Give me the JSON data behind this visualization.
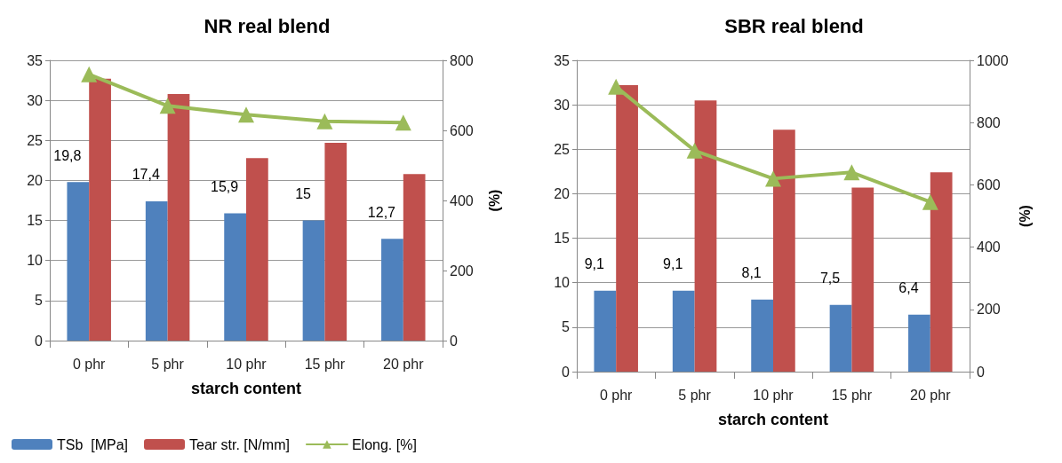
{
  "chart_data": [
    {
      "type": "bar",
      "title": "NR real blend",
      "xlabel": "starch content",
      "y2label": "(%)",
      "categories": [
        "0 phr",
        "5 phr",
        "10 phr",
        "15 phr",
        "20 phr"
      ],
      "series": [
        {
          "name": "TSb  [MPa]",
          "color": "#4f81bd",
          "values": [
            19.8,
            17.4,
            15.9,
            15,
            12.7
          ],
          "value_labels": [
            "19,8",
            "17,4",
            "15,9",
            "15",
            "12,7"
          ]
        },
        {
          "name": "Tear str. [N/mm]",
          "color": "#c0504d",
          "values": [
            32.7,
            30.8,
            22.8,
            24.7,
            20.8
          ]
        },
        {
          "name": "Elong. [%]",
          "type": "line",
          "axis": "y2",
          "color": "#9bbb59",
          "values": [
            760,
            670,
            645,
            626,
            622
          ]
        }
      ],
      "ylim": [
        0,
        35
      ],
      "yticks": [
        0,
        5,
        10,
        15,
        20,
        25,
        30,
        35
      ],
      "y2lim": [
        0,
        800
      ],
      "y2ticks": [
        0,
        200,
        400,
        600,
        800
      ],
      "grid": "y",
      "legend": "bottom",
      "marker": "triangle"
    },
    {
      "type": "bar",
      "title": "SBR real blend",
      "xlabel": "starch content",
      "y2label": "(%)",
      "categories": [
        "0 phr",
        "5 phr",
        "10 phr",
        "15 phr",
        "20 phr"
      ],
      "series": [
        {
          "color": "#4f81bd",
          "values": [
            9.1,
            9.1,
            8.1,
            7.5,
            6.4
          ],
          "value_labels": [
            "9,1",
            "9,1",
            "8,1",
            "7,5",
            "6,4"
          ]
        },
        {
          "color": "#c0504d",
          "values": [
            32.2,
            30.5,
            27.2,
            20.7,
            22.4
          ]
        },
        {
          "type": "line",
          "axis": "y2",
          "color": "#9bbb59",
          "values": [
            915,
            710,
            620,
            640,
            545
          ]
        }
      ],
      "ylim": [
        0,
        35
      ],
      "yticks": [
        0,
        5,
        10,
        15,
        20,
        25,
        30,
        35
      ],
      "y2lim": [
        0,
        1000
      ],
      "y2ticks": [
        0,
        200,
        400,
        600,
        800,
        1000
      ],
      "grid": "y",
      "legend": false,
      "marker": "triangle"
    }
  ]
}
